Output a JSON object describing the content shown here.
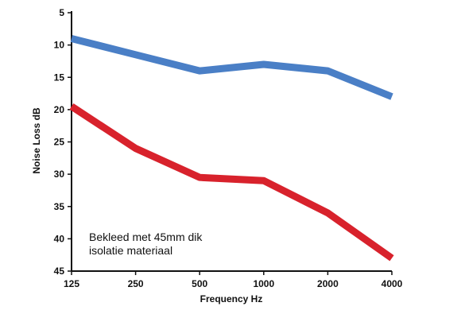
{
  "chart_data": {
    "type": "line",
    "x_categories": [
      "125",
      "250",
      "500",
      "1000",
      "2000",
      "4000"
    ],
    "y_ticks": [
      "5",
      "10",
      "15",
      "20",
      "25",
      "30",
      "35",
      "40",
      "45"
    ],
    "ylim": [
      5,
      45
    ],
    "y_inverted": true,
    "xlabel": "Frequency Hz",
    "ylabel": "Noise Loss dB",
    "grid": false,
    "series": [
      {
        "color": "#4a7fc6",
        "values": [
          9,
          11.5,
          14,
          13,
          14,
          18
        ]
      },
      {
        "color": "#d8222c",
        "values": [
          19.5,
          26,
          30.5,
          31,
          36,
          43
        ]
      }
    ],
    "annotation": {
      "lines": [
        "Bekleed met 45mm dik",
        "isolatie materiaal"
      ]
    }
  }
}
